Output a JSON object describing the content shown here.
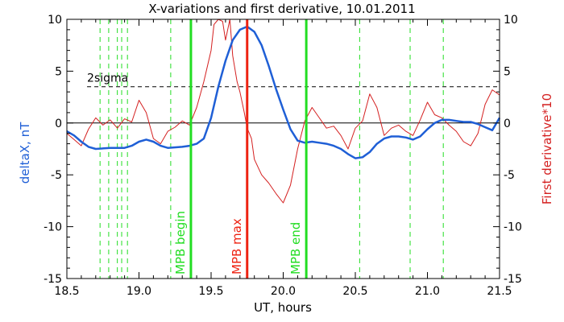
{
  "chart_data": {
    "type": "line",
    "title": "X-variations and first derivative, 10.01.2011",
    "xlabel": "UT, hours",
    "ylabel_left": "deltaX, nT",
    "ylabel_right": "First derivative*10",
    "xlim": [
      18.5,
      21.5
    ],
    "ylim": [
      -15,
      10
    ],
    "x_ticks": [
      18.5,
      19.0,
      19.5,
      20.0,
      20.5,
      21.0,
      21.5
    ],
    "x_tick_labels": [
      "18.5",
      "19.0",
      "19.5",
      "20.0",
      "20.5",
      "21.0",
      "21.5"
    ],
    "y_ticks": [
      -15,
      -10,
      -5,
      0,
      5,
      10
    ],
    "y_tick_labels": [
      "-15",
      "-10",
      "-5",
      "0",
      "5",
      "10"
    ],
    "threshold": {
      "label": "2sigma",
      "value": 3.5
    },
    "colors": {
      "deltaX": "#1f5fd6",
      "derivative": "#d42020",
      "markers": "#22dd22",
      "mpb_max": "#ee2211"
    },
    "dashed_markers_x": [
      18.73,
      18.79,
      18.85,
      18.88,
      18.92,
      19.22,
      20.53,
      20.88,
      21.11
    ],
    "vertical_markers": [
      {
        "label": "MPB begin",
        "x": 19.36,
        "color": "#22dd22"
      },
      {
        "label": "MPB max",
        "x": 19.75,
        "color": "#ee2211"
      },
      {
        "label": "MPB end",
        "x": 20.16,
        "color": "#22dd22"
      }
    ],
    "series": [
      {
        "color": "#1f5fd6",
        "x": [
          18.5,
          18.55,
          18.6,
          18.65,
          18.7,
          18.8,
          18.9,
          18.95,
          19.0,
          19.05,
          19.1,
          19.15,
          19.2,
          19.3,
          19.35,
          19.4,
          19.45,
          19.5,
          19.55,
          19.6,
          19.65,
          19.7,
          19.75,
          19.8,
          19.85,
          19.9,
          19.95,
          20.0,
          20.05,
          20.1,
          20.15,
          20.2,
          20.25,
          20.3,
          20.35,
          20.4,
          20.45,
          20.5,
          20.55,
          20.6,
          20.65,
          20.7,
          20.75,
          20.8,
          20.85,
          20.9,
          20.95,
          21.0,
          21.05,
          21.1,
          21.15,
          21.2,
          21.25,
          21.3,
          21.35,
          21.4,
          21.45,
          21.5
        ],
        "y": [
          -0.8,
          -1.2,
          -1.8,
          -2.3,
          -2.5,
          -2.4,
          -2.4,
          -2.2,
          -1.8,
          -1.6,
          -1.8,
          -2.2,
          -2.4,
          -2.3,
          -2.2,
          -2.0,
          -1.5,
          0.5,
          3.5,
          6.0,
          8.0,
          9.0,
          9.3,
          8.8,
          7.5,
          5.5,
          3.3,
          1.3,
          -0.6,
          -1.7,
          -1.9,
          -1.8,
          -1.9,
          -2.0,
          -2.2,
          -2.5,
          -3.0,
          -3.4,
          -3.3,
          -2.8,
          -2.0,
          -1.5,
          -1.3,
          -1.3,
          -1.4,
          -1.6,
          -1.3,
          -0.6,
          0.0,
          0.3,
          0.3,
          0.2,
          0.1,
          0.1,
          -0.1,
          -0.4,
          -0.7,
          0.5
        ]
      },
      {
        "color": "#d42020",
        "x": [
          18.5,
          18.55,
          18.6,
          18.65,
          18.7,
          18.75,
          18.8,
          18.85,
          18.9,
          18.95,
          19.0,
          19.05,
          19.1,
          19.15,
          19.2,
          19.25,
          19.3,
          19.35,
          19.4,
          19.45,
          19.5,
          19.52,
          19.55,
          19.58,
          19.6,
          19.63,
          19.65,
          19.68,
          19.7,
          19.73,
          19.75,
          19.78,
          19.8,
          19.85,
          19.9,
          19.95,
          20.0,
          20.05,
          20.1,
          20.15,
          20.2,
          20.25,
          20.3,
          20.35,
          20.4,
          20.45,
          20.5,
          20.55,
          20.6,
          20.65,
          20.7,
          20.75,
          20.8,
          20.85,
          20.9,
          20.95,
          21.0,
          21.05,
          21.1,
          21.15,
          21.2,
          21.25,
          21.3,
          21.35,
          21.4,
          21.45,
          21.5
        ],
        "y": [
          -1.0,
          -1.6,
          -2.2,
          -0.6,
          0.5,
          -0.2,
          0.3,
          -0.5,
          0.4,
          0.1,
          2.2,
          1.0,
          -1.5,
          -2.0,
          -0.8,
          -0.4,
          0.2,
          -0.2,
          1.5,
          4.0,
          7.0,
          9.5,
          10.0,
          9.8,
          8.0,
          10.0,
          6.5,
          4.0,
          3.0,
          1.0,
          -0.5,
          -1.5,
          -3.5,
          -5.0,
          -5.8,
          -6.8,
          -7.7,
          -6.0,
          -2.5,
          0.2,
          1.5,
          0.5,
          -0.5,
          -0.3,
          -1.2,
          -2.5,
          -0.5,
          0.2,
          2.8,
          1.5,
          -1.2,
          -0.5,
          -0.2,
          -0.8,
          -1.2,
          0.3,
          2.0,
          0.8,
          0.5,
          -0.2,
          -0.8,
          -1.8,
          -2.2,
          -1.0,
          1.8,
          3.2,
          2.7
        ]
      }
    ],
    "grid": false,
    "legend": "none"
  }
}
